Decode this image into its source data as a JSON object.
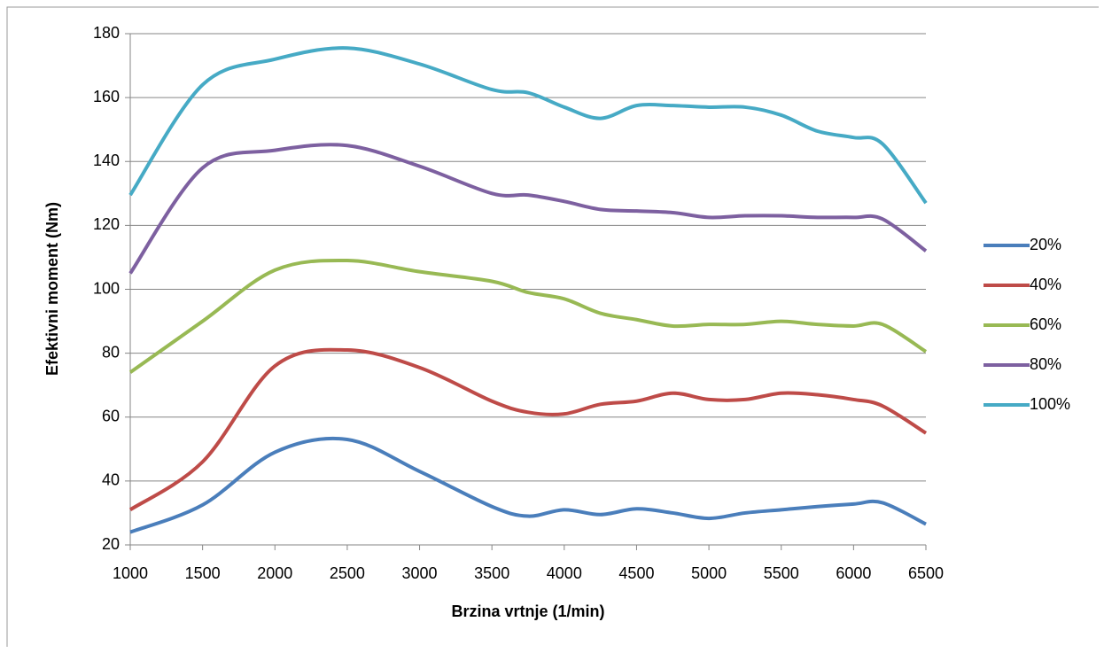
{
  "chart_data": {
    "type": "line",
    "x_label": "Brzina vrtnje (1/min)",
    "y_label": "Efektivni moment (Nm)",
    "x": [
      1000,
      1500,
      2000,
      2500,
      3000,
      3500,
      3750,
      4000,
      4250,
      4500,
      4750,
      5000,
      5250,
      5500,
      5750,
      6000,
      6200,
      6500
    ],
    "series": [
      {
        "name": "20%",
        "color": "#4a7ebb",
        "values": [
          24,
          32.5,
          49,
          53,
          43,
          32,
          29,
          31,
          29.5,
          31.3,
          30,
          28.3,
          30,
          31,
          32,
          32.8,
          33.2,
          26.5
        ]
      },
      {
        "name": "40%",
        "color": "#be4b48",
        "values": [
          31,
          46,
          76,
          81,
          75.5,
          65,
          61.5,
          61,
          64,
          65,
          67.5,
          65.5,
          65.5,
          67.5,
          67,
          65.5,
          63.5,
          55
        ]
      },
      {
        "name": "60%",
        "color": "#98b954",
        "values": [
          74,
          90,
          106,
          109,
          105.5,
          102.5,
          99,
          97,
          92.5,
          90.5,
          88.5,
          89,
          89,
          90,
          89,
          88.5,
          89,
          80.5
        ]
      },
      {
        "name": "80%",
        "color": "#7d60a0",
        "values": [
          105,
          138,
          143.5,
          145,
          138.5,
          130,
          129.5,
          127.5,
          125,
          124.5,
          124,
          122.5,
          123,
          123,
          122.5,
          122.5,
          122,
          112
        ]
      },
      {
        "name": "100%",
        "color": "#46aac5",
        "values": [
          129.5,
          164,
          172,
          175.5,
          170.5,
          162.5,
          161.5,
          157,
          153.5,
          157.5,
          157.5,
          157,
          157,
          154.5,
          149.5,
          147.5,
          145.5,
          127
        ]
      }
    ],
    "xlim": [
      1000,
      6500
    ],
    "xticks": [
      1000,
      1500,
      2000,
      2500,
      3000,
      3500,
      4000,
      4500,
      5000,
      5500,
      6000,
      6500
    ],
    "ylim": [
      20,
      180
    ],
    "yticks": [
      20,
      40,
      60,
      80,
      100,
      120,
      140,
      160,
      180
    ],
    "grid": true,
    "legend": "right"
  }
}
